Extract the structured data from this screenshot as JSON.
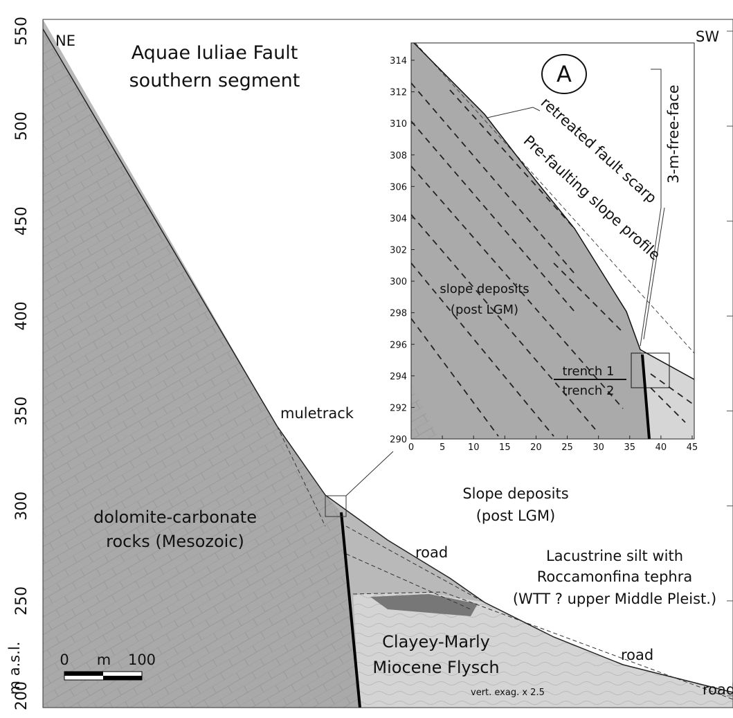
{
  "main": {
    "y_axis_label": "m a.s.l.",
    "yticks": [
      200,
      250,
      300,
      350,
      400,
      450,
      500,
      550
    ],
    "corner_left": "NE",
    "corner_right": "SW",
    "title_lines": [
      "Aquae Iuliae Fault",
      "southern segment"
    ],
    "labels": {
      "muletrack": "muletrack",
      "road_1": "road",
      "road_2": "road",
      "road_3": "road",
      "slope_deposits": [
        "Slope deposits",
        "(post LGM)"
      ],
      "dolomite": [
        "dolomite-carbonate",
        "rocks (Mesozoic)"
      ],
      "lacustrine": [
        "Lacustrine silt with",
        "Roccamonfina tephra",
        "(WTT ? upper Middle Pleist.)"
      ],
      "flysch": [
        "Clayey-Marly",
        "Miocene Flysch"
      ],
      "exaggeration": "vert. exag. x 2.5"
    },
    "scale_bar": {
      "start": "0",
      "unit": "m",
      "end": "100"
    }
  },
  "inset": {
    "panel_label": "A",
    "yticks": [
      290,
      292,
      294,
      296,
      298,
      300,
      302,
      304,
      306,
      308,
      310,
      312,
      314
    ],
    "xticks": [
      0,
      5,
      10,
      15,
      20,
      25,
      30,
      35,
      40,
      45
    ],
    "labels": {
      "scarp": "retreated fault scarp",
      "profile": "Pre-faulting slope profile",
      "free_face": "3-m-free-face",
      "slope_deposits": [
        "slope deposits",
        "(post LGM)"
      ],
      "trench_1": "trench 1",
      "trench_2": "trench 2"
    }
  }
}
